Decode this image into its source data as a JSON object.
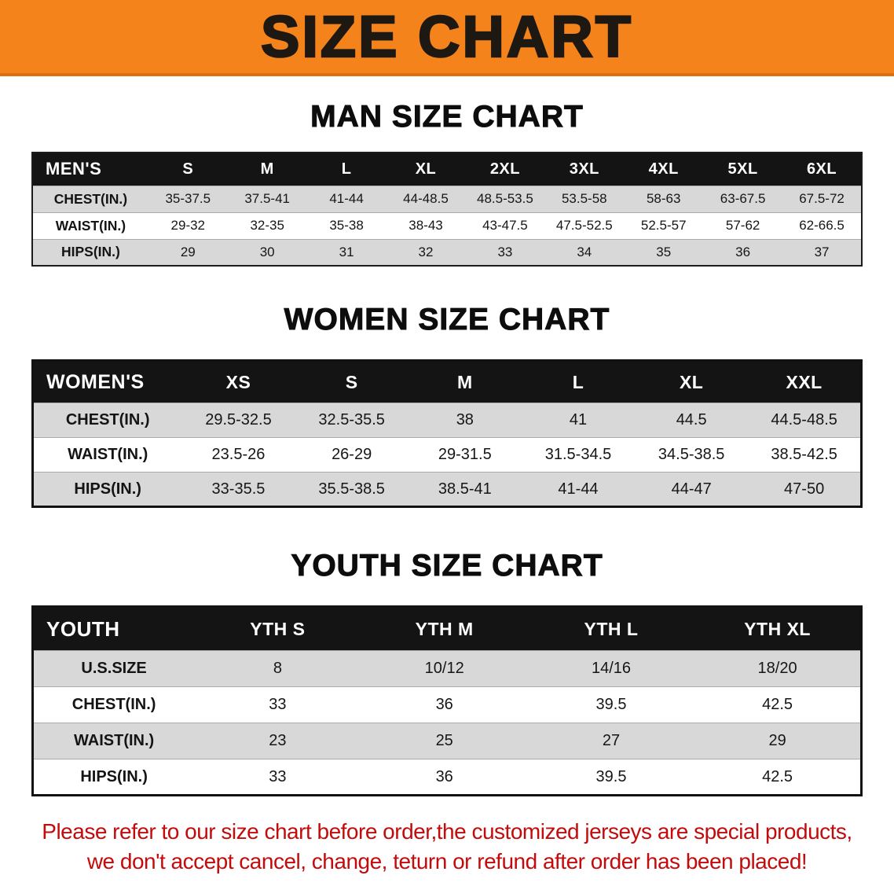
{
  "banner": {
    "title": "SIZE CHART"
  },
  "sections": [
    {
      "heading": "MAN SIZE CHART",
      "table": {
        "header": [
          "MEN'S",
          "S",
          "M",
          "L",
          "XL",
          "2XL",
          "3XL",
          "4XL",
          "5XL",
          "6XL"
        ],
        "rows": [
          [
            "CHEST(IN.)",
            "35-37.5",
            "37.5-41",
            "41-44",
            "44-48.5",
            "48.5-53.5",
            "53.5-58",
            "58-63",
            "63-67.5",
            "67.5-72"
          ],
          [
            "WAIST(IN.)",
            "29-32",
            "32-35",
            "35-38",
            "38-43",
            "43-47.5",
            "47.5-52.5",
            "52.5-57",
            "57-62",
            "62-66.5"
          ],
          [
            "HIPS(IN.)",
            "29",
            "30",
            "31",
            "32",
            "33",
            "34",
            "35",
            "36",
            "37"
          ]
        ]
      }
    },
    {
      "heading": "WOMEN SIZE CHART",
      "table": {
        "header": [
          "WOMEN'S",
          "XS",
          "S",
          "M",
          "L",
          "XL",
          "XXL"
        ],
        "rows": [
          [
            "CHEST(IN.)",
            "29.5-32.5",
            "32.5-35.5",
            "38",
            "41",
            "44.5",
            "44.5-48.5"
          ],
          [
            "WAIST(IN.)",
            "23.5-26",
            "26-29",
            "29-31.5",
            "31.5-34.5",
            "34.5-38.5",
            "38.5-42.5"
          ],
          [
            "HIPS(IN.)",
            "33-35.5",
            "35.5-38.5",
            "38.5-41",
            "41-44",
            "44-47",
            "47-50"
          ]
        ]
      }
    },
    {
      "heading": "YOUTH SIZE CHART",
      "table": {
        "header": [
          "YOUTH",
          "YTH S",
          "YTH M",
          "YTH L",
          "YTH XL"
        ],
        "rows": [
          [
            "U.S.SIZE",
            "8",
            "10/12",
            "14/16",
            "18/20"
          ],
          [
            "CHEST(IN.)",
            "33",
            "36",
            "39.5",
            "42.5"
          ],
          [
            "WAIST(IN.)",
            "23",
            "25",
            "27",
            "29"
          ],
          [
            "HIPS(IN.)",
            "33",
            "36",
            "39.5",
            "42.5"
          ]
        ]
      }
    }
  ],
  "disclaimer": {
    "line1": "Please refer to our size chart before order,the customized jerseys are special products,",
    "line2": "we don't accept cancel, change, teturn or refund after order has been placed!"
  },
  "colors": {
    "banner_orange": "#F5831C",
    "table_header_black": "#141414",
    "row_shaded_gray": "#D8D8D8",
    "disclaimer_red": "#C40B0B"
  }
}
